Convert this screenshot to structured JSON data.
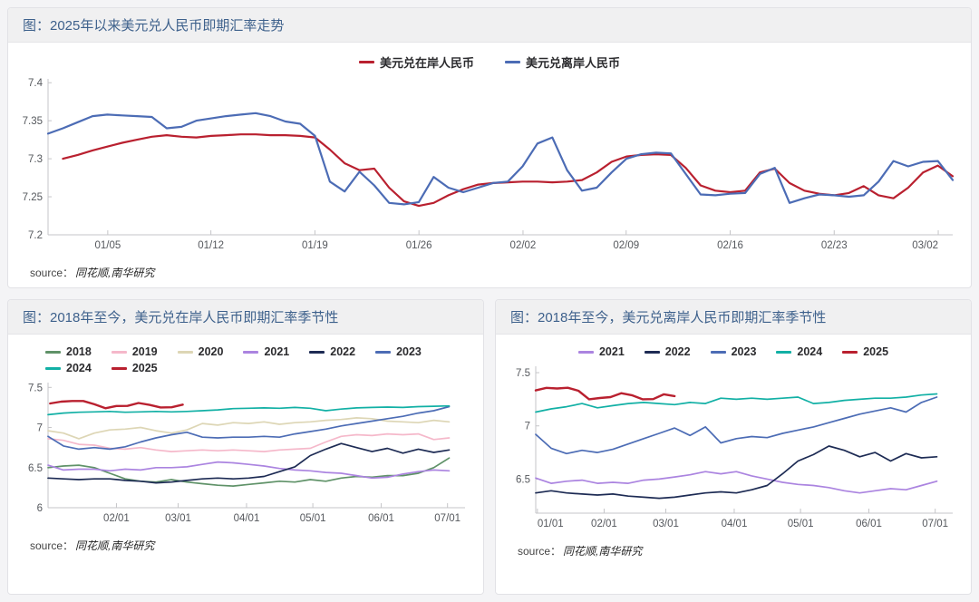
{
  "page": {
    "background": "#f4f4f6",
    "card_background": "#ffffff",
    "header_background": "#f0f0f1",
    "border_color": "#e2e2e6",
    "title_color": "#3e618c",
    "axis_color": "#c5c5c8",
    "tick_label_color": "#55585d"
  },
  "chart_data": [
    {
      "type": "line",
      "title": "图：2025年以来美元兑人民币即期汇率走势",
      "source_label": "source：",
      "source_text": "同花顺,南华研究",
      "legend_position": "top-center",
      "grid": false,
      "ylim": [
        7.2,
        7.405
      ],
      "yticks": [
        {
          "v": 7.4,
          "label": "7.4"
        },
        {
          "v": 7.35,
          "label": "7.35"
        },
        {
          "v": 7.3,
          "label": "7.3"
        },
        {
          "v": 7.25,
          "label": "7.25"
        },
        {
          "v": 7.2,
          "label": "7.2"
        }
      ],
      "xticks": [
        {
          "label": "01/05",
          "pos": 0.066
        },
        {
          "label": "01/12",
          "pos": 0.18
        },
        {
          "label": "01/19",
          "pos": 0.295
        },
        {
          "label": "01/26",
          "pos": 0.41
        },
        {
          "label": "02/02",
          "pos": 0.525
        },
        {
          "label": "02/09",
          "pos": 0.639
        },
        {
          "label": "02/16",
          "pos": 0.754
        },
        {
          "label": "02/23",
          "pos": 0.869
        },
        {
          "label": "03/02",
          "pos": 0.984
        }
      ],
      "series": [
        {
          "name": "美元兑在岸人民币",
          "color": "#b9202f",
          "width": 2.2,
          "start": 0.0164,
          "end": 1,
          "values": [
            7.3,
            7.305,
            7.311,
            7.316,
            7.321,
            7.325,
            7.329,
            7.331,
            7.329,
            7.328,
            7.33,
            7.331,
            7.332,
            7.332,
            7.331,
            7.331,
            7.33,
            7.328,
            7.312,
            7.294,
            7.285,
            7.287,
            7.262,
            7.244,
            7.238,
            7.242,
            7.252,
            7.26,
            7.266,
            7.268,
            7.269,
            7.27,
            7.27,
            7.269,
            7.27,
            7.272,
            7.282,
            7.296,
            7.303,
            7.305,
            7.306,
            7.305,
            7.288,
            7.265,
            7.258,
            7.256,
            7.258,
            7.282,
            7.287,
            7.268,
            7.258,
            7.254,
            7.252,
            7.255,
            7.264,
            7.252,
            7.248,
            7.262,
            7.282,
            7.291,
            7.277
          ]
        },
        {
          "name": "美元兑离岸人民币",
          "color": "#4c6cb5",
          "width": 2.2,
          "start": 0,
          "end": 1,
          "values": [
            7.333,
            7.34,
            7.348,
            7.356,
            7.358,
            7.357,
            7.356,
            7.355,
            7.34,
            7.342,
            7.35,
            7.353,
            7.356,
            7.358,
            7.36,
            7.356,
            7.349,
            7.346,
            7.33,
            7.27,
            7.257,
            7.283,
            7.265,
            7.242,
            7.24,
            7.243,
            7.276,
            7.262,
            7.256,
            7.262,
            7.268,
            7.27,
            7.29,
            7.32,
            7.328,
            7.285,
            7.258,
            7.262,
            7.282,
            7.3,
            7.306,
            7.308,
            7.307,
            7.28,
            7.253,
            7.252,
            7.254,
            7.255,
            7.28,
            7.288,
            7.242,
            7.248,
            7.253,
            7.252,
            7.25,
            7.252,
            7.27,
            7.297,
            7.29,
            7.296,
            7.297,
            7.272
          ]
        }
      ]
    },
    {
      "type": "line",
      "title": "图：2018年至今，美元兑在岸人民币即期汇率季节性",
      "source_label": "source：",
      "source_text": "同花顺,南华研究",
      "legend_position": "top-left",
      "grid": false,
      "ylim": [
        6.0,
        7.56
      ],
      "yticks": [
        {
          "v": 7.5,
          "label": "7.5"
        },
        {
          "v": 7.0,
          "label": "7"
        },
        {
          "v": 6.5,
          "label": "6.5"
        },
        {
          "v": 6.0,
          "label": "6"
        }
      ],
      "xticks": [
        {
          "label": "02/01",
          "pos": 0.164
        },
        {
          "label": "03/01",
          "pos": 0.312
        },
        {
          "label": "04/01",
          "pos": 0.476
        },
        {
          "label": "05/01",
          "pos": 0.635
        },
        {
          "label": "06/01",
          "pos": 0.799
        },
        {
          "label": "07/01",
          "pos": 0.958
        }
      ],
      "series": [
        {
          "name": "2018",
          "color": "#5f9268",
          "width": 1.7,
          "start": 0,
          "end": 0.962,
          "values": [
            6.5,
            6.52,
            6.53,
            6.5,
            6.43,
            6.36,
            6.33,
            6.32,
            6.35,
            6.32,
            6.3,
            6.28,
            6.27,
            6.29,
            6.31,
            6.33,
            6.32,
            6.35,
            6.33,
            6.37,
            6.39,
            6.38,
            6.4,
            6.4,
            6.43,
            6.5,
            6.62
          ]
        },
        {
          "name": "2019",
          "color": "#f5b8ca",
          "width": 1.7,
          "start": 0,
          "end": 0.962,
          "values": [
            6.86,
            6.84,
            6.79,
            6.78,
            6.74,
            6.73,
            6.75,
            6.72,
            6.7,
            6.71,
            6.72,
            6.71,
            6.72,
            6.71,
            6.7,
            6.72,
            6.73,
            6.74,
            6.82,
            6.89,
            6.91,
            6.9,
            6.92,
            6.91,
            6.92,
            6.85,
            6.87
          ]
        },
        {
          "name": "2020",
          "color": "#ddd6b5",
          "width": 1.7,
          "start": 0,
          "end": 0.962,
          "values": [
            6.96,
            6.93,
            6.86,
            6.93,
            6.97,
            6.98,
            7.0,
            6.96,
            6.93,
            6.97,
            7.05,
            7.03,
            7.06,
            7.05,
            7.07,
            7.04,
            7.06,
            7.07,
            7.09,
            7.1,
            7.12,
            7.11,
            7.08,
            7.07,
            7.06,
            7.09,
            7.07
          ]
        },
        {
          "name": "2021",
          "color": "#ab84e0",
          "width": 1.7,
          "start": 0,
          "end": 0.962,
          "values": [
            6.53,
            6.47,
            6.48,
            6.48,
            6.46,
            6.48,
            6.47,
            6.5,
            6.5,
            6.51,
            6.54,
            6.57,
            6.56,
            6.54,
            6.52,
            6.49,
            6.47,
            6.46,
            6.44,
            6.43,
            6.4,
            6.37,
            6.38,
            6.42,
            6.45,
            6.47,
            6.46
          ]
        },
        {
          "name": "2022",
          "color": "#1d2b54",
          "width": 1.7,
          "start": 0,
          "end": 0.962,
          "values": [
            6.37,
            6.36,
            6.35,
            6.36,
            6.36,
            6.34,
            6.33,
            6.31,
            6.32,
            6.34,
            6.36,
            6.37,
            6.36,
            6.37,
            6.39,
            6.45,
            6.51,
            6.65,
            6.73,
            6.8,
            6.75,
            6.7,
            6.74,
            6.68,
            6.73,
            6.69,
            6.72
          ]
        },
        {
          "name": "2023",
          "color": "#4c6cb5",
          "width": 1.7,
          "start": 0,
          "end": 0.962,
          "values": [
            6.89,
            6.77,
            6.73,
            6.75,
            6.73,
            6.76,
            6.82,
            6.87,
            6.91,
            6.94,
            6.88,
            6.87,
            6.88,
            6.88,
            6.89,
            6.88,
            6.92,
            6.95,
            6.98,
            7.02,
            7.05,
            7.08,
            7.11,
            7.14,
            7.18,
            7.21,
            7.26
          ]
        },
        {
          "name": "2024",
          "color": "#12b0a5",
          "width": 1.7,
          "start": 0,
          "end": 0.962,
          "values": [
            7.16,
            7.18,
            7.19,
            7.195,
            7.2,
            7.19,
            7.195,
            7.2,
            7.195,
            7.2,
            7.21,
            7.22,
            7.235,
            7.24,
            7.245,
            7.24,
            7.25,
            7.24,
            7.21,
            7.23,
            7.245,
            7.25,
            7.255,
            7.25,
            7.26,
            7.265,
            7.27
          ]
        },
        {
          "name": "2025",
          "color": "#b9202f",
          "width": 2.4,
          "start": 0.005,
          "end": 0.323,
          "values": [
            7.3,
            7.323,
            7.33,
            7.331,
            7.29,
            7.24,
            7.268,
            7.27,
            7.306,
            7.282,
            7.25,
            7.252,
            7.285
          ]
        }
      ]
    },
    {
      "type": "line",
      "title": "图：2018年至今，美元兑离岸人民币即期汇率季节性",
      "source_label": "source：",
      "source_text": "同花顺,南华研究",
      "legend_position": "top-center",
      "grid": false,
      "ylim": [
        6.18,
        7.56
      ],
      "yticks": [
        {
          "v": 7.5,
          "label": "7.5"
        },
        {
          "v": 7.0,
          "label": "7"
        },
        {
          "v": 6.5,
          "label": "6.5"
        }
      ],
      "xticks": [
        {
          "label": "01/01",
          "pos": 0.004
        },
        {
          "label": "02/01",
          "pos": 0.164
        },
        {
          "label": "03/01",
          "pos": 0.312
        },
        {
          "label": "04/01",
          "pos": 0.476
        },
        {
          "label": "05/01",
          "pos": 0.635
        },
        {
          "label": "06/01",
          "pos": 0.799
        },
        {
          "label": "07/01",
          "pos": 0.958
        }
      ],
      "series": [
        {
          "name": "2021",
          "color": "#ab84e0",
          "width": 1.7,
          "start": 0,
          "end": 0.962,
          "values": [
            6.51,
            6.46,
            6.48,
            6.49,
            6.46,
            6.47,
            6.46,
            6.49,
            6.5,
            6.52,
            6.54,
            6.57,
            6.55,
            6.57,
            6.53,
            6.5,
            6.47,
            6.45,
            6.44,
            6.42,
            6.39,
            6.37,
            6.39,
            6.41,
            6.4,
            6.44,
            6.48
          ]
        },
        {
          "name": "2022",
          "color": "#1d2b54",
          "width": 1.7,
          "start": 0,
          "end": 0.962,
          "values": [
            6.37,
            6.39,
            6.37,
            6.36,
            6.35,
            6.36,
            6.34,
            6.33,
            6.32,
            6.33,
            6.35,
            6.37,
            6.38,
            6.37,
            6.4,
            6.44,
            6.55,
            6.67,
            6.73,
            6.81,
            6.77,
            6.71,
            6.75,
            6.67,
            6.74,
            6.7,
            6.71
          ]
        },
        {
          "name": "2023",
          "color": "#4c6cb5",
          "width": 1.7,
          "start": 0,
          "end": 0.962,
          "values": [
            6.92,
            6.79,
            6.74,
            6.77,
            6.75,
            6.78,
            6.83,
            6.88,
            6.93,
            6.98,
            6.91,
            6.99,
            6.84,
            6.88,
            6.9,
            6.89,
            6.93,
            6.96,
            6.99,
            7.03,
            7.07,
            7.11,
            7.14,
            7.17,
            7.13,
            7.22,
            7.27
          ]
        },
        {
          "name": "2024",
          "color": "#12b0a5",
          "width": 1.7,
          "start": 0,
          "end": 0.962,
          "values": [
            7.13,
            7.16,
            7.18,
            7.21,
            7.17,
            7.19,
            7.21,
            7.22,
            7.21,
            7.2,
            7.22,
            7.21,
            7.26,
            7.25,
            7.26,
            7.25,
            7.26,
            7.27,
            7.21,
            7.22,
            7.24,
            7.25,
            7.26,
            7.26,
            7.27,
            7.29,
            7.3
          ]
        },
        {
          "name": "2025",
          "color": "#b9202f",
          "width": 2.4,
          "start": 0,
          "end": 0.333,
          "values": [
            7.333,
            7.357,
            7.351,
            7.358,
            7.33,
            7.25,
            7.262,
            7.27,
            7.307,
            7.288,
            7.25,
            7.252,
            7.297,
            7.28
          ]
        }
      ]
    }
  ]
}
